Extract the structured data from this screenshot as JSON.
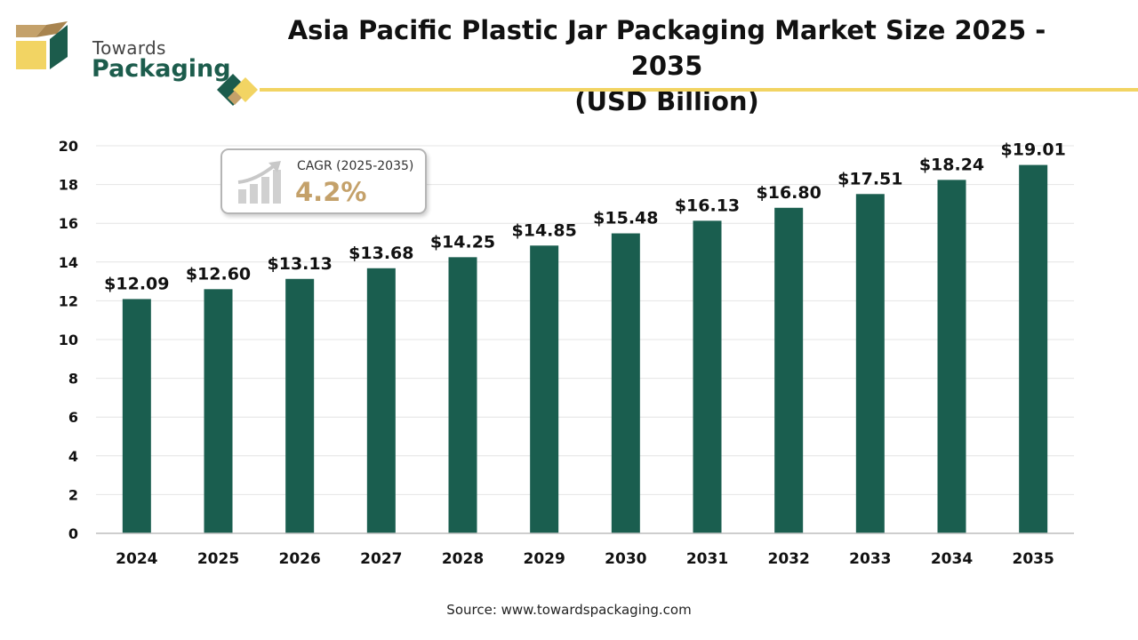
{
  "brand": {
    "line1": "Towards",
    "line2": "Packaging"
  },
  "header": {
    "title_line1": "Asia Pacific Plastic Jar Packaging Market Size 2025 - 2035",
    "title_line2": "(USD Billion)"
  },
  "cagr": {
    "label": "CAGR (2025-2035)",
    "value": "4.2%"
  },
  "source": "Source: www.towardspackaging.com",
  "colors": {
    "bar": "#1a5e4f",
    "accent_yellow": "#f2d463",
    "accent_tan": "#c4a16a",
    "grid": "#e4e4e4"
  },
  "chart_data": {
    "type": "bar",
    "title": "Asia Pacific Plastic Jar Packaging Market Size 2025 - 2035 (USD Billion)",
    "xlabel": "",
    "ylabel": "",
    "ylim": [
      0,
      20
    ],
    "yticks": [
      0,
      2,
      4,
      6,
      8,
      10,
      12,
      14,
      16,
      18,
      20
    ],
    "grid": true,
    "categories": [
      "2024",
      "2025",
      "2026",
      "2027",
      "2028",
      "2029",
      "2030",
      "2031",
      "2032",
      "2033",
      "2034",
      "2035"
    ],
    "values": [
      12.09,
      12.6,
      13.13,
      13.68,
      14.25,
      14.85,
      15.48,
      16.13,
      16.8,
      17.51,
      18.24,
      19.01
    ],
    "data_labels": [
      "$12.09",
      "$12.60",
      "$13.13",
      "$13.68",
      "$14.25",
      "$14.85",
      "$15.48",
      "$16.13",
      "$16.80",
      "$17.51",
      "$18.24",
      "$19.01"
    ]
  }
}
